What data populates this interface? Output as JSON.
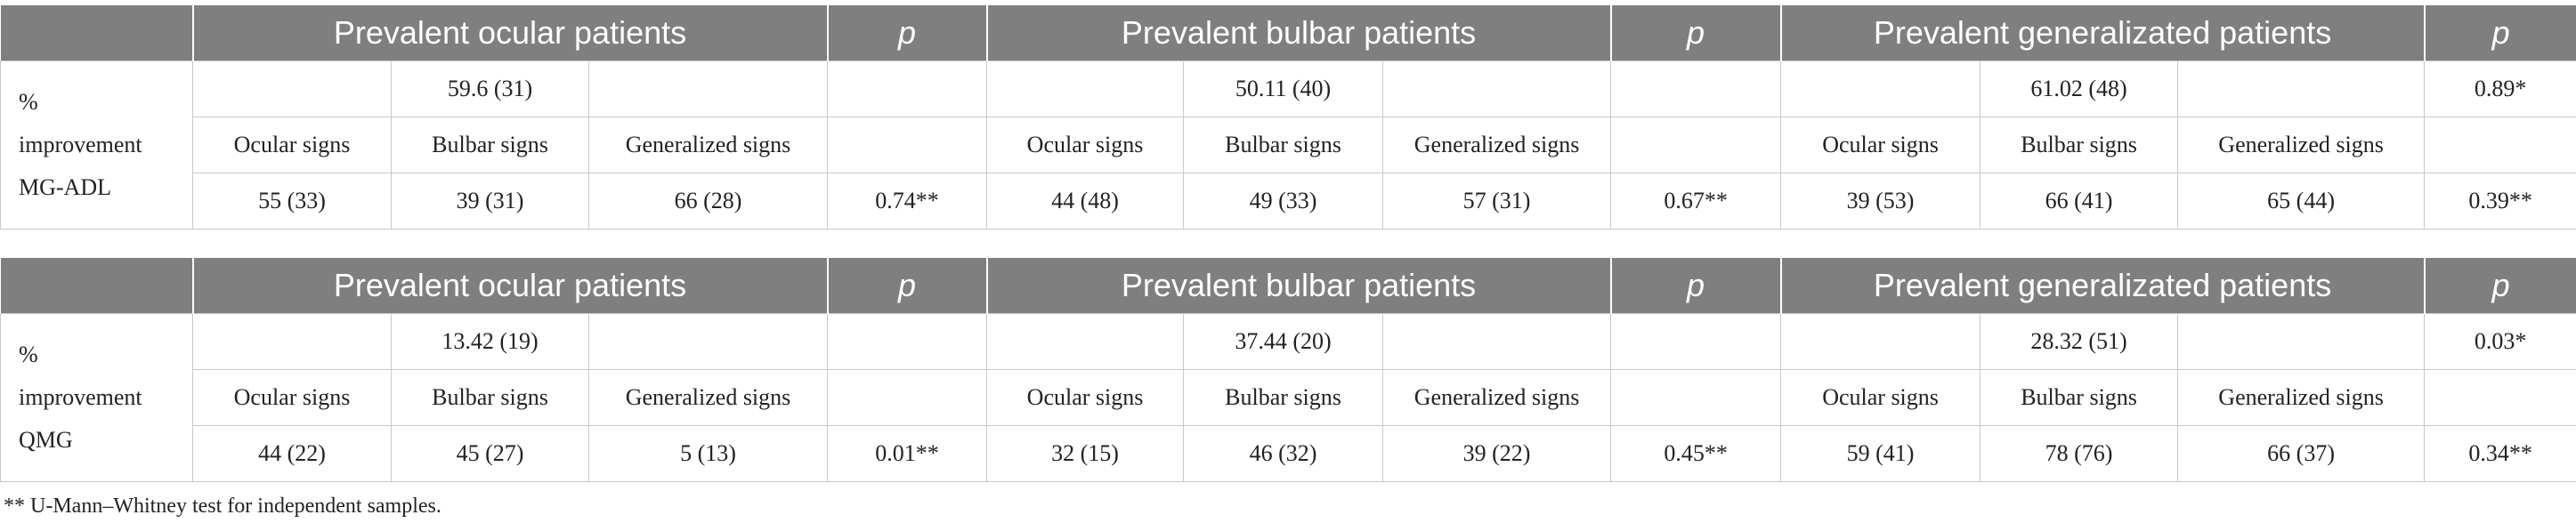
{
  "tables": [
    {
      "header": [
        "Prevalent ocular patients",
        "p",
        "Prevalent bulbar patients",
        "p",
        "Prevalent generalizated patients",
        "p"
      ],
      "label": "% improvement MG-ADL",
      "rows": [
        [
          null,
          "59.6 (31)",
          null,
          null,
          null,
          "50.11 (40)",
          null,
          null,
          null,
          "61.02 (48)",
          null,
          "0.89*"
        ],
        [
          "Ocular signs",
          "Bulbar signs",
          "Generalized signs",
          null,
          "Ocular signs",
          "Bulbar signs",
          "Generalized signs",
          null,
          "Ocular signs",
          "Bulbar signs",
          "Generalized signs",
          null
        ],
        [
          "55 (33)",
          "39 (31)",
          "66 (28)",
          "0.74**",
          "44 (48)",
          "49 (33)",
          "57 (31)",
          "0.67**",
          "39 (53)",
          "66 (41)",
          "65 (44)",
          "0.39**"
        ]
      ]
    },
    {
      "header": [
        "Prevalent ocular patients",
        "p",
        "Prevalent bulbar patients",
        "p",
        "Prevalent generalizated patients",
        "p"
      ],
      "label": "% improvement QMG",
      "rows": [
        [
          null,
          "13.42 (19)",
          null,
          null,
          null,
          "37.44 (20)",
          null,
          null,
          null,
          "28.32 (51)",
          null,
          "0.03*"
        ],
        [
          "Ocular signs",
          "Bulbar signs",
          "Generalized signs",
          null,
          "Ocular signs",
          "Bulbar signs",
          "Generalized signs",
          null,
          "Ocular signs",
          "Bulbar signs",
          "Generalized signs",
          null
        ],
        [
          "44 (22)",
          "45 (27)",
          "5 (13)",
          "0.01**",
          "32 (15)",
          "46 (32)",
          "39 (22)",
          "0.45**",
          "59 (41)",
          "78 (76)",
          "66 (37)",
          "0.34**"
        ]
      ]
    }
  ],
  "footnote": "** U-Mann–Whitney test for independent samples."
}
